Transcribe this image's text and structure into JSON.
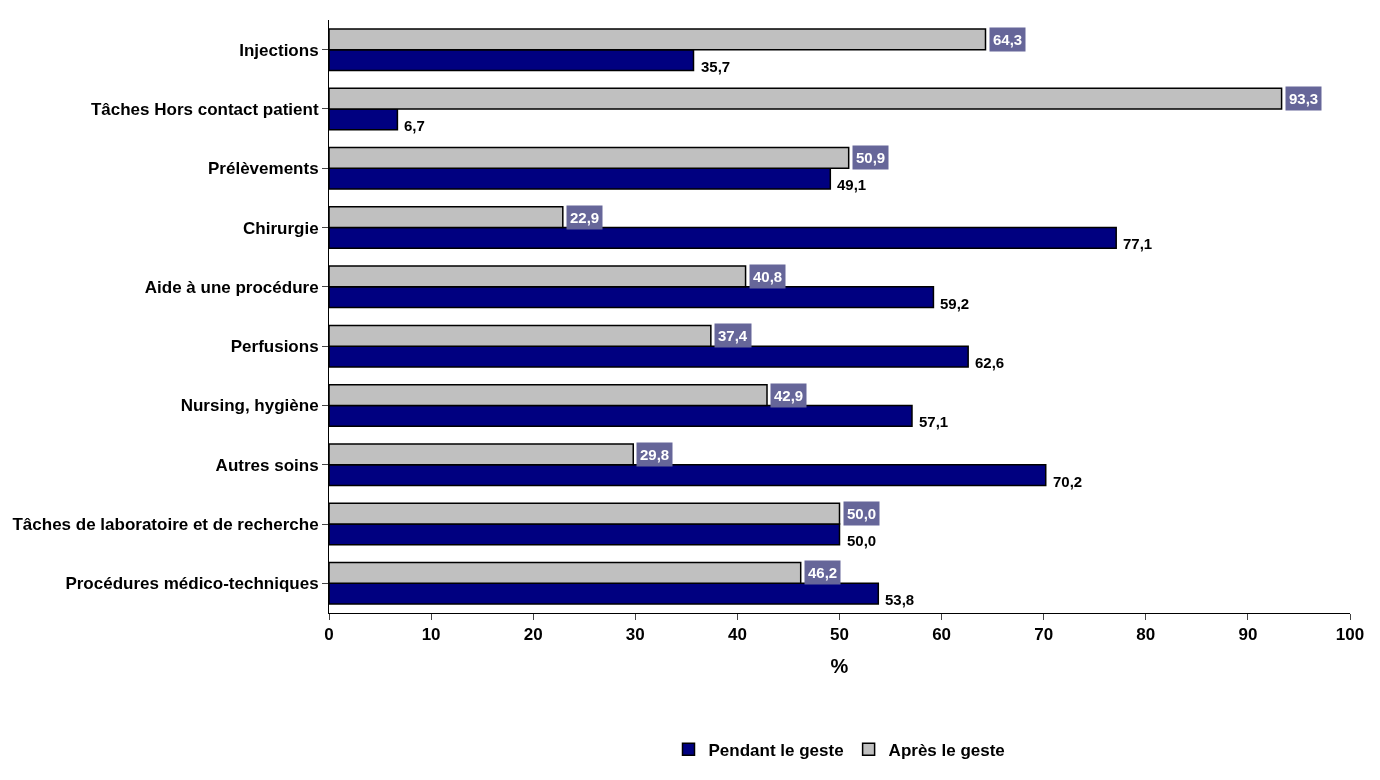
{
  "chart_data": {
    "type": "bar",
    "orientation": "horizontal",
    "xlabel": "%",
    "categories": [
      "Injections",
      "Tâches Hors contact patient",
      "Prélèvements",
      "Chirurgie",
      "Aide à une procédure",
      "Perfusions",
      "Nursing, hygiène",
      "Autres soins",
      "Tâches de laboratoire et de recherche",
      "Procédures médico-techniques"
    ],
    "series": [
      {
        "name": "Pendant le geste",
        "color": "#000080",
        "values": [
          35.7,
          6.7,
          49.1,
          77.1,
          59.2,
          62.6,
          57.1,
          70.2,
          50.0,
          53.8
        ],
        "value_labels": [
          "35,7",
          "6,7",
          "49,1",
          "77,1",
          "59,2",
          "62,6",
          "57,1",
          "70,2",
          "50,0",
          "53,8"
        ]
      },
      {
        "name": "Après le geste",
        "color": "#c0c0c0",
        "values": [
          64.3,
          93.3,
          50.9,
          22.9,
          40.8,
          37.4,
          42.9,
          29.8,
          50.0,
          46.2
        ],
        "value_labels": [
          "64,3",
          "93,3",
          "50,9",
          "22,9",
          "40,8",
          "37,4",
          "42,9",
          "29,8",
          "50,0",
          "46,2"
        ]
      }
    ],
    "xlim": [
      0,
      100
    ],
    "xticks": [
      0,
      10,
      20,
      30,
      40,
      50,
      60,
      70,
      80,
      90,
      100
    ],
    "legend": "bottom"
  }
}
